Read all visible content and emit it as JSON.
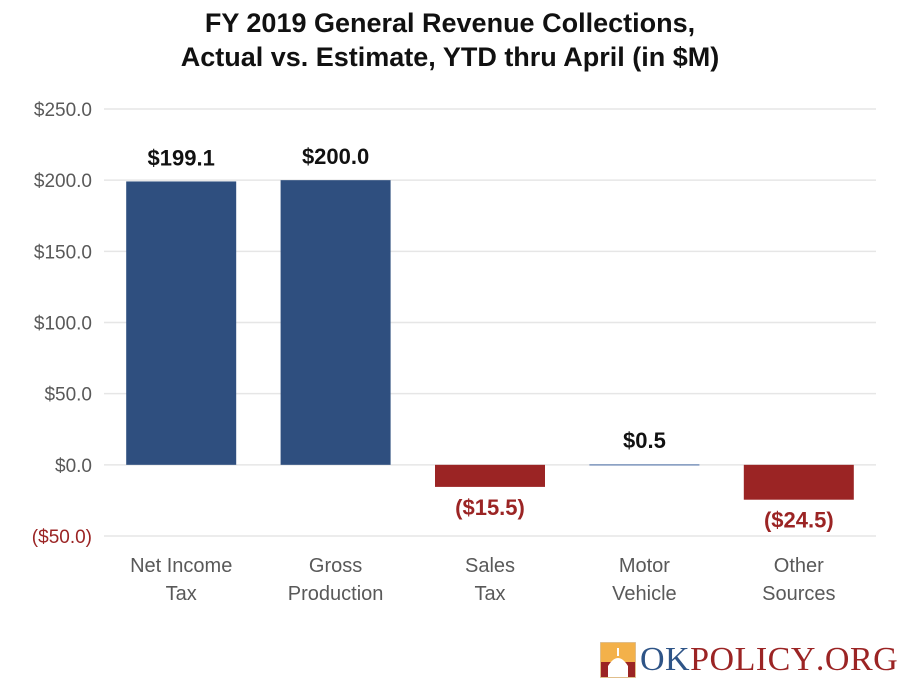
{
  "chart_data": {
    "type": "bar",
    "title_lines": [
      "FY 2019  General Revenue Collections,",
      "Actual vs. Estimate, YTD thru April (in $M)"
    ],
    "categories": [
      [
        "Net Income",
        "Tax"
      ],
      [
        "Gross",
        "Production"
      ],
      [
        "Sales",
        "Tax"
      ],
      [
        "Motor",
        "Vehicle"
      ],
      [
        "Other",
        "Sources"
      ]
    ],
    "values": [
      199.1,
      200.0,
      -15.5,
      0.5,
      -24.5
    ],
    "data_labels": [
      "$199.1",
      "$200.0",
      "($15.5)",
      "$0.5",
      "($24.5)"
    ],
    "ylim": [
      -50,
      250
    ],
    "yticks": [
      250,
      200,
      150,
      100,
      50,
      0,
      -50
    ],
    "ytick_labels": [
      "$250.0",
      "$200.0",
      "$150.0",
      "$100.0",
      "$50.0",
      "$0.0",
      "($50.0)"
    ],
    "grid": true,
    "colors": {
      "positive": "#2f4f7f",
      "negative": "#9b2424",
      "negative_label": "#9b2424",
      "label": "#111111",
      "axis_text": "#595959"
    }
  },
  "logo": {
    "text_ok": "OK",
    "text_policy": "POLICY",
    "text_org": ".ORG"
  }
}
